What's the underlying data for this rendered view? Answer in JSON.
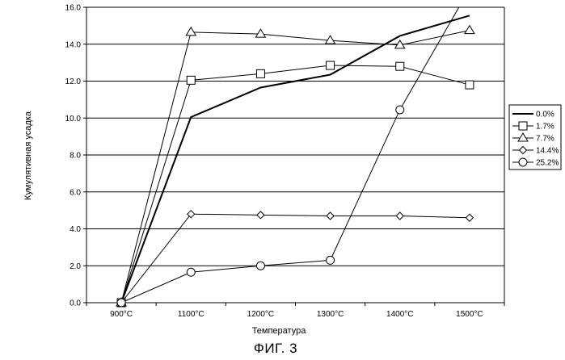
{
  "chart_data": {
    "type": "line",
    "title": "",
    "xlabel": "Температура",
    "ylabel": "Кумулятивная усадка",
    "categories": [
      "900°C",
      "1100°C",
      "1200°C",
      "1300°C",
      "1400°C",
      "1500°C"
    ],
    "ylim": [
      0,
      16
    ],
    "y_ticks": [
      "0.0",
      "2.0",
      "4.0",
      "6.0",
      "8.0",
      "10.0",
      "12.0",
      "14.0",
      "16.0"
    ],
    "grid": "horizontal",
    "legend_position": "right",
    "series": [
      {
        "name": "0.0%",
        "marker": "none",
        "values": [
          0.0,
          10.05,
          11.65,
          12.35,
          14.45,
          15.55
        ]
      },
      {
        "name": "1.7%",
        "marker": "square",
        "values": [
          0.0,
          12.05,
          12.4,
          12.85,
          12.8,
          11.8
        ]
      },
      {
        "name": "7.7%",
        "marker": "triangle",
        "values": [
          0.0,
          14.65,
          14.55,
          14.2,
          13.95,
          14.75
        ]
      },
      {
        "name": "14.4%",
        "marker": "diamond",
        "values": [
          0.0,
          4.8,
          4.75,
          4.7,
          4.7,
          4.6
        ]
      },
      {
        "name": "25.2%",
        "marker": "circle",
        "values": [
          0.0,
          1.65,
          2.0,
          2.3,
          10.45,
          17.0
        ]
      }
    ]
  },
  "caption": "ФИГ. 3"
}
